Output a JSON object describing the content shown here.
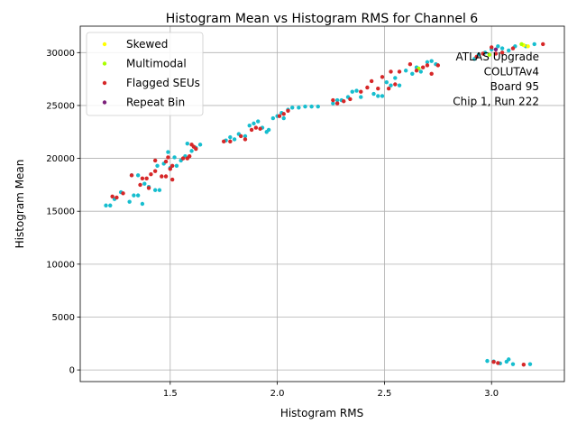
{
  "chart_data": {
    "type": "scatter",
    "title": "Histogram Mean vs Histogram RMS for Channel 6",
    "xlabel": "Histogram RMS",
    "ylabel": "Histogram Mean",
    "xlim": [
      1.08,
      3.34
    ],
    "ylim": [
      -1100,
      32500
    ],
    "xticks": [
      1.5,
      2.0,
      2.5,
      3.0
    ],
    "xtick_labels": [
      "1.5",
      "2.0",
      "2.5",
      "3.0"
    ],
    "yticks": [
      0,
      5000,
      10000,
      15000,
      20000,
      25000,
      30000
    ],
    "ytick_labels": [
      "0",
      "5000",
      "10000",
      "15000",
      "20000",
      "25000",
      "30000"
    ],
    "grid": true,
    "legend_placement": "top-left",
    "annotation": [
      "ATLAS Upgrade",
      "COLUTAv4",
      "Board 95",
      "Chip 1, Run 222"
    ],
    "series": [
      {
        "name": "",
        "color": "#17becf",
        "points": [
          [
            1.2,
            15550
          ],
          [
            1.22,
            15550
          ],
          [
            1.24,
            16150
          ],
          [
            1.27,
            16800
          ],
          [
            1.31,
            15900
          ],
          [
            1.33,
            16500
          ],
          [
            1.35,
            16500
          ],
          [
            1.37,
            15700
          ],
          [
            1.32,
            18400
          ],
          [
            1.35,
            18400
          ],
          [
            1.38,
            17600
          ],
          [
            1.4,
            17300
          ],
          [
            1.43,
            17000
          ],
          [
            1.45,
            17000
          ],
          [
            1.44,
            19300
          ],
          [
            1.47,
            19500
          ],
          [
            1.5,
            19100
          ],
          [
            1.53,
            19300
          ],
          [
            1.49,
            20600
          ],
          [
            1.52,
            20100
          ],
          [
            1.55,
            19800
          ],
          [
            1.57,
            20200
          ],
          [
            1.58,
            21400
          ],
          [
            1.6,
            20700
          ],
          [
            1.62,
            21000
          ],
          [
            1.64,
            21300
          ],
          [
            1.76,
            21700
          ],
          [
            1.78,
            22000
          ],
          [
            1.8,
            21800
          ],
          [
            1.82,
            22300
          ],
          [
            1.85,
            22100
          ],
          [
            1.87,
            23100
          ],
          [
            1.89,
            23300
          ],
          [
            1.91,
            23500
          ],
          [
            1.93,
            22900
          ],
          [
            1.95,
            22500
          ],
          [
            1.96,
            22700
          ],
          [
            1.98,
            23800
          ],
          [
            2.0,
            24000
          ],
          [
            2.02,
            24300
          ],
          [
            2.03,
            23800
          ],
          [
            2.05,
            24600
          ],
          [
            2.07,
            24800
          ],
          [
            2.1,
            24800
          ],
          [
            2.13,
            24900
          ],
          [
            2.16,
            24900
          ],
          [
            2.19,
            24900
          ],
          [
            2.26,
            25200
          ],
          [
            2.28,
            25500
          ],
          [
            2.3,
            25500
          ],
          [
            2.33,
            25800
          ],
          [
            2.35,
            26300
          ],
          [
            2.37,
            26400
          ],
          [
            2.39,
            25800
          ],
          [
            2.45,
            26100
          ],
          [
            2.47,
            25900
          ],
          [
            2.49,
            25900
          ],
          [
            2.51,
            27200
          ],
          [
            2.53,
            26900
          ],
          [
            2.55,
            27600
          ],
          [
            2.57,
            26900
          ],
          [
            2.6,
            28300
          ],
          [
            2.63,
            28000
          ],
          [
            2.65,
            28600
          ],
          [
            2.67,
            28200
          ],
          [
            2.7,
            29100
          ],
          [
            2.72,
            29200
          ],
          [
            2.74,
            28900
          ],
          [
            2.92,
            29400
          ],
          [
            2.94,
            29800
          ],
          [
            2.97,
            30000
          ],
          [
            3.0,
            30300
          ],
          [
            3.03,
            30600
          ],
          [
            3.05,
            30400
          ],
          [
            3.08,
            30200
          ],
          [
            3.11,
            30600
          ],
          [
            3.16,
            30600
          ],
          [
            3.2,
            30800
          ],
          [
            2.98,
            850
          ],
          [
            3.01,
            800
          ],
          [
            3.04,
            620
          ],
          [
            3.07,
            780
          ],
          [
            3.08,
            1000
          ],
          [
            3.1,
            550
          ],
          [
            3.18,
            550
          ]
        ]
      },
      {
        "name": "Skewed",
        "color": "#ffff00",
        "points": [
          [
            3.15,
            30700
          ],
          [
            3.17,
            30600
          ]
        ]
      },
      {
        "name": "Multimodal",
        "color": "#aaff00",
        "points": [
          [
            3.14,
            30800
          ],
          [
            2.66,
            28500
          ],
          [
            2.99,
            29800
          ]
        ]
      },
      {
        "name": "Flagged SEUs",
        "color": "#d62728",
        "points": [
          [
            1.23,
            16400
          ],
          [
            1.25,
            16300
          ],
          [
            1.28,
            16700
          ],
          [
            1.32,
            18400
          ],
          [
            1.36,
            17500
          ],
          [
            1.37,
            18100
          ],
          [
            1.39,
            18100
          ],
          [
            1.4,
            17200
          ],
          [
            1.41,
            18500
          ],
          [
            1.43,
            18800
          ],
          [
            1.43,
            19800
          ],
          [
            1.46,
            18300
          ],
          [
            1.48,
            18300
          ],
          [
            1.48,
            19700
          ],
          [
            1.49,
            20100
          ],
          [
            1.5,
            19000
          ],
          [
            1.51,
            19300
          ],
          [
            1.51,
            18000
          ],
          [
            1.56,
            20000
          ],
          [
            1.58,
            20000
          ],
          [
            1.59,
            20200
          ],
          [
            1.6,
            21300
          ],
          [
            1.61,
            21100
          ],
          [
            1.62,
            20900
          ],
          [
            1.75,
            21600
          ],
          [
            1.78,
            21600
          ],
          [
            1.83,
            22100
          ],
          [
            1.85,
            21800
          ],
          [
            1.88,
            22700
          ],
          [
            1.9,
            22900
          ],
          [
            1.92,
            22800
          ],
          [
            2.01,
            24000
          ],
          [
            2.03,
            24200
          ],
          [
            2.05,
            24500
          ],
          [
            2.26,
            25500
          ],
          [
            2.28,
            25200
          ],
          [
            2.31,
            25400
          ],
          [
            2.34,
            25600
          ],
          [
            2.39,
            26300
          ],
          [
            2.42,
            26700
          ],
          [
            2.44,
            27300
          ],
          [
            2.47,
            26600
          ],
          [
            2.49,
            27700
          ],
          [
            2.52,
            26600
          ],
          [
            2.53,
            28200
          ],
          [
            2.55,
            27000
          ],
          [
            2.57,
            28200
          ],
          [
            2.62,
            28900
          ],
          [
            2.65,
            28300
          ],
          [
            2.68,
            28600
          ],
          [
            2.7,
            28800
          ],
          [
            2.72,
            28000
          ],
          [
            2.75,
            28800
          ],
          [
            2.93,
            29600
          ],
          [
            2.96,
            29900
          ],
          [
            3.0,
            30500
          ],
          [
            3.02,
            29900
          ],
          [
            3.05,
            30000
          ],
          [
            3.1,
            30400
          ],
          [
            3.24,
            30800
          ],
          [
            3.01,
            760
          ],
          [
            3.03,
            650
          ],
          [
            3.15,
            500
          ]
        ]
      },
      {
        "name": "Repeat Bin",
        "color": "#7b1f7a",
        "points": [
          [
            3.02,
            30300
          ]
        ]
      }
    ]
  }
}
